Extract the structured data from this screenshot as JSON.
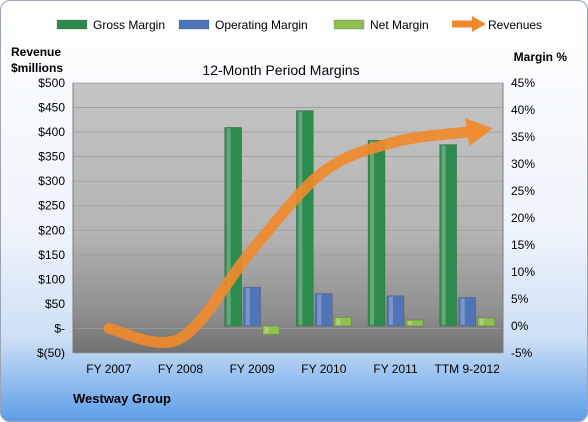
{
  "chart_data": {
    "type": "bar",
    "title": "12-Month Period Margins",
    "company": "Westway Group",
    "ylabel_left": "Revenue\n$millions",
    "ylabel_right": "Margin %",
    "categories": [
      "FY 2007",
      "FY 2008",
      "FY 2009",
      "FY 2010",
      "FY 2011",
      "TTM 9-2012"
    ],
    "left_axis": {
      "min": -50,
      "max": 500,
      "step": 50,
      "tick_labels": [
        "$(50)",
        "$-",
        "$50",
        "$100",
        "$150",
        "$200",
        "$250",
        "$300",
        "$350",
        "$400",
        "$450",
        "$500"
      ]
    },
    "right_axis": {
      "min": -5,
      "max": 45,
      "step": 5,
      "tick_labels": [
        "-5%",
        "0%",
        "5%",
        "10%",
        "15%",
        "20%",
        "25%",
        "30%",
        "35%",
        "40%",
        "45%"
      ]
    },
    "series": [
      {
        "name": "Gross Margin",
        "axis": "right",
        "type": "bar",
        "color": "#2e8b4e",
        "values": [
          null,
          null,
          36.8,
          39.9,
          34.4,
          33.6
        ]
      },
      {
        "name": "Operating Margin",
        "axis": "right",
        "type": "bar",
        "color": "#4f75b8",
        "values": [
          null,
          null,
          7.2,
          6.0,
          5.6,
          5.3
        ]
      },
      {
        "name": "Net Margin",
        "axis": "right",
        "type": "bar",
        "color": "#8fbf4f",
        "values": [
          null,
          null,
          -1.6,
          1.6,
          1.1,
          1.5
        ]
      },
      {
        "name": "Revenues",
        "axis": "left",
        "type": "line",
        "color": "#f08a2c",
        "values": [
          0,
          -20,
          160,
          320,
          380,
          400
        ]
      }
    ],
    "legend_position": "top",
    "grid": true
  }
}
